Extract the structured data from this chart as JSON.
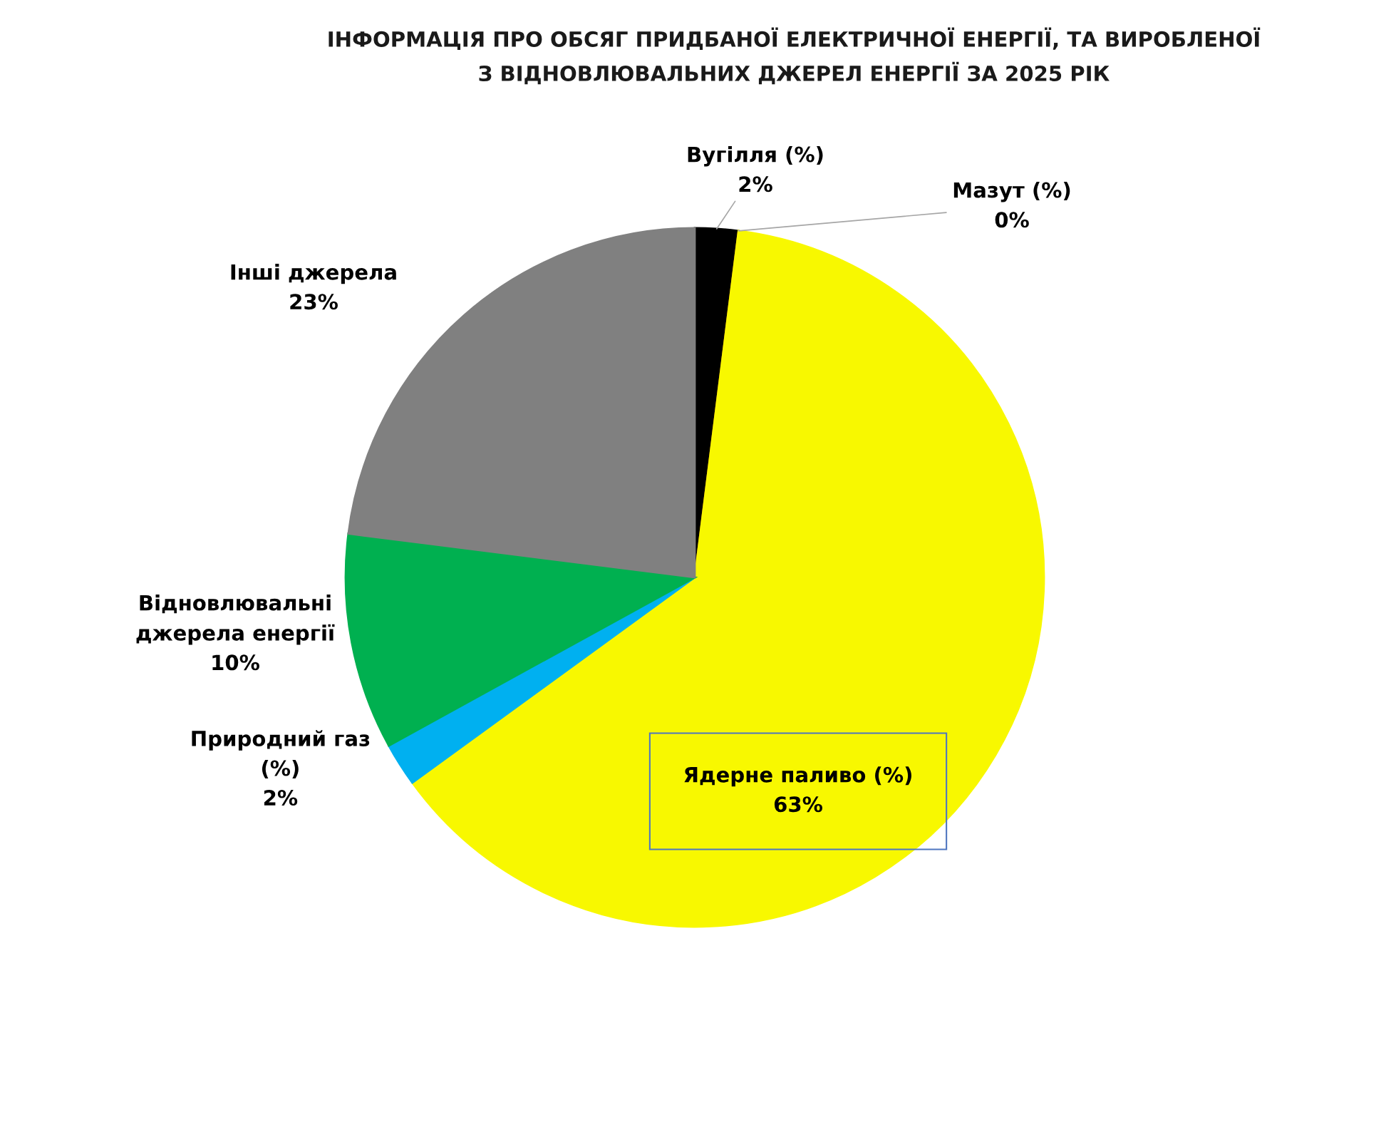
{
  "chart_data": {
    "type": "pie",
    "title": "ІНФОРМАЦІЯ ПРО ОБСЯГ ПРИДБАНОЇ ЕЛЕКТРИЧНОЇ ЕНЕРГІЇ, ТА ВИРОБЛЕНОЇ\nЗ ВІДНОВЛЮВАЛЬНИХ ДЖЕРЕЛ ЕНЕРГІЇ ЗА 2025 РІК",
    "categories": [
      "Вугілля (%)",
      "Мазут (%)",
      "Ядерне паливо (%)",
      "Природний газ\n(%)",
      "Відновлювальні\nджерела енергії",
      "Інші джерела"
    ],
    "values": [
      2,
      0,
      63,
      2,
      10,
      23
    ],
    "value_labels": [
      "2%",
      "0%",
      "63%",
      "2%",
      "10%",
      "23%"
    ],
    "colors": [
      "#000000",
      "#c55a11",
      "#f8f800",
      "#00b0f0",
      "#00b050",
      "#808080"
    ]
  }
}
